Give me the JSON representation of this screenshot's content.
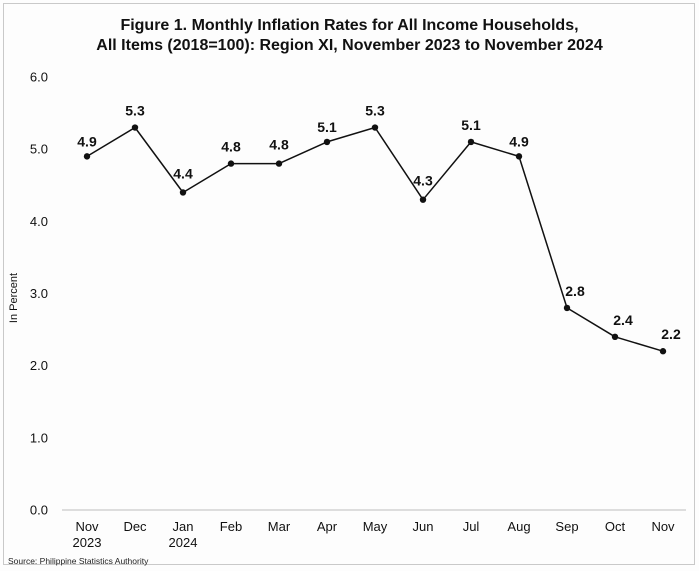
{
  "chart_data": {
    "type": "line",
    "title_lines": [
      "Figure 1. Monthly Inflation Rates for All Income Households,",
      "All Items (2018=100): Region XI, November 2023 to November 2024"
    ],
    "xlabel": "",
    "ylabel": "In Percent",
    "categories": [
      [
        "Nov",
        "2023"
      ],
      [
        "Dec"
      ],
      [
        "Jan",
        "2024"
      ],
      [
        "Feb"
      ],
      [
        "Mar"
      ],
      [
        "Apr"
      ],
      [
        "May"
      ],
      [
        "Jun"
      ],
      [
        "Jul"
      ],
      [
        "Aug"
      ],
      [
        "Sep"
      ],
      [
        "Oct"
      ],
      [
        "Nov"
      ]
    ],
    "values": [
      4.9,
      5.3,
      4.4,
      4.8,
      4.8,
      5.1,
      5.3,
      4.3,
      5.1,
      4.9,
      2.8,
      2.4,
      2.2
    ],
    "data_labels": [
      "4.9",
      "5.3",
      "4.4",
      "4.8",
      "4.8",
      "5.1",
      "5.3",
      "4.3",
      "5.1",
      "4.9",
      "2.8",
      "2.4",
      "2.2"
    ],
    "ylim": [
      0,
      6
    ],
    "yticks": [
      0,
      1,
      2,
      3,
      4,
      5,
      6
    ],
    "ytick_labels": [
      "0.0",
      "1.0",
      "2.0",
      "3.0",
      "4.0",
      "5.0",
      "6.0"
    ],
    "grid": false,
    "legend": "none",
    "line_color": "#111111"
  },
  "source": "Source: Philippine Statistics Authority"
}
